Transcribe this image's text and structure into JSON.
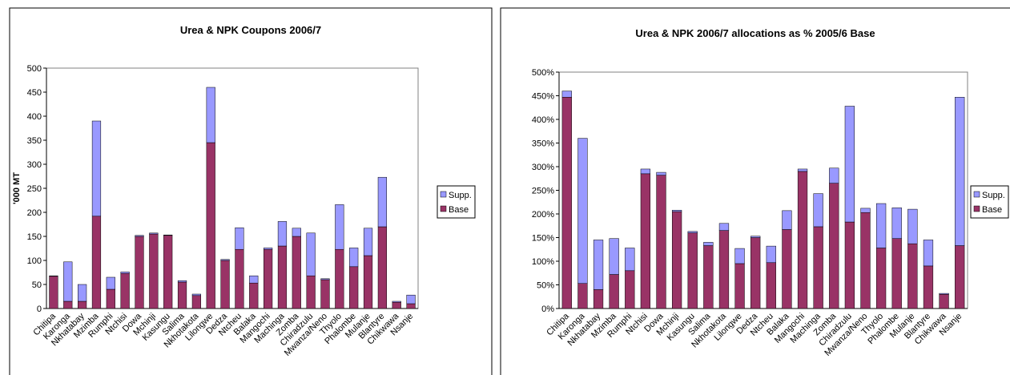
{
  "chart_data": [
    {
      "type": "bar",
      "stacked": true,
      "title": "Urea & NPK Coupons 2006/7",
      "y_label": "'000 MT",
      "categories": [
        "Chitipa",
        "Karonga",
        "Nkhatabay",
        "Mzimba",
        "Rumphi",
        "Ntchisi",
        "Dowa",
        "Mchinji",
        "Kasungu",
        "Salima",
        "Nkhotakota",
        "Lilongwe",
        "Dedza",
        "Ntcheu",
        "Balaka",
        "Mangochi",
        "Machinga",
        "Zomba",
        "Chiradzulu",
        "Mwanza/Neno",
        "Thyolo",
        "Phalombe",
        "Mulanje",
        "Blantyre",
        "Chikwawa",
        "Nsanje"
      ],
      "series": [
        {
          "name": "Base",
          "color": "#993366",
          "values": [
            67,
            15,
            15,
            192,
            40,
            73,
            150,
            155,
            152,
            55,
            27,
            345,
            100,
            123,
            53,
            123,
            130,
            150,
            68,
            60,
            123,
            87,
            110,
            170,
            13,
            10
          ]
        },
        {
          "name": "Supp.",
          "color": "#9999ff",
          "values": [
            1,
            82,
            35,
            198,
            25,
            3,
            2,
            2,
            1,
            3,
            3,
            115,
            2,
            45,
            15,
            3,
            51,
            17,
            89,
            2,
            93,
            39,
            57,
            103,
            2,
            18
          ]
        }
      ],
      "ylim": [
        0,
        500
      ],
      "yticks": [
        0,
        50,
        100,
        150,
        200,
        250,
        300,
        350,
        400,
        450,
        500
      ],
      "legend": "right"
    },
    {
      "type": "bar",
      "stacked": true,
      "title": "Urea & NPK 2006/7 allocations as % 2005/6 Base",
      "categories": [
        "Chitipa",
        "Karonga",
        "Nkhatabay",
        "Mzimba",
        "Rumphi",
        "Ntchisi",
        "Dowa",
        "Mchinji",
        "Kasungu",
        "Salima",
        "Nkhotakota",
        "Lilongwe",
        "Dedza",
        "Ntcheu",
        "Balaka",
        "Mangochi",
        "Machinga",
        "Zomba",
        "Chiradzulu",
        "Mwanza/Neno",
        "Thyolo",
        "Phalombe",
        "Mulanje",
        "Blantyre",
        "Chikwawa",
        "Nsanje"
      ],
      "series": [
        {
          "name": "Base",
          "color": "#993366",
          "values": [
            447,
            53,
            40,
            72,
            80,
            285,
            282,
            205,
            160,
            133,
            165,
            95,
            150,
            97,
            167,
            290,
            173,
            265,
            183,
            203,
            128,
            148,
            137,
            90,
            30,
            133
          ]
        },
        {
          "name": "Supp.",
          "color": "#9999ff",
          "values": [
            13,
            307,
            105,
            76,
            48,
            10,
            6,
            3,
            3,
            7,
            15,
            32,
            3,
            35,
            40,
            5,
            70,
            32,
            245,
            9,
            94,
            65,
            73,
            55,
            2,
            314
          ]
        }
      ],
      "ylim": [
        0,
        500
      ],
      "yticks": [
        {
          "value": 0,
          "label": "0%"
        },
        {
          "value": 50,
          "label": "50%"
        },
        {
          "value": 100,
          "label": "100%"
        },
        {
          "value": 150,
          "label": "150%"
        },
        {
          "value": 200,
          "label": "200%"
        },
        {
          "value": 250,
          "label": "250%"
        },
        {
          "value": 300,
          "label": "300%"
        },
        {
          "value": 350,
          "label": "350%"
        },
        {
          "value": 400,
          "label": "400%"
        },
        {
          "value": 450,
          "label": "450%"
        },
        {
          "value": 500,
          "label": "500%"
        }
      ],
      "legend": "right"
    }
  ]
}
